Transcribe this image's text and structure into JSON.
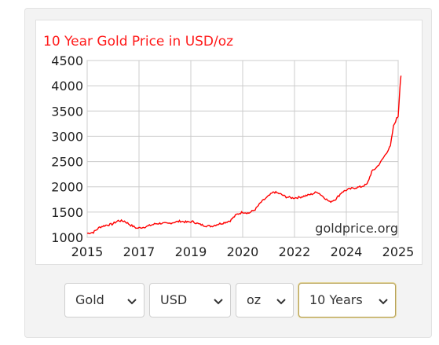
{
  "chart_data": {
    "type": "line",
    "title": "10 Year Gold Price in USD/oz",
    "watermark": "goldprice.org",
    "xlabel": "",
    "ylabel": "",
    "x_ticks": [
      "2015",
      "2017",
      "2019",
      "2020",
      "2022",
      "2024",
      "2025"
    ],
    "y_ticks": [
      "4500",
      "4000",
      "3500",
      "3000",
      "2500",
      "2000",
      "1500",
      "1000"
    ],
    "ylim": [
      1000,
      4500
    ],
    "grid": true,
    "series": [
      {
        "color": "#ff0000",
        "points": [
          [
            0.0,
            1080
          ],
          [
            0.02,
            1100
          ],
          [
            0.04,
            1200
          ],
          [
            0.06,
            1240
          ],
          [
            0.08,
            1260
          ],
          [
            0.1,
            1330
          ],
          [
            0.12,
            1320
          ],
          [
            0.14,
            1240
          ],
          [
            0.16,
            1180
          ],
          [
            0.18,
            1200
          ],
          [
            0.2,
            1230
          ],
          [
            0.22,
            1270
          ],
          [
            0.24,
            1280
          ],
          [
            0.26,
            1270
          ],
          [
            0.28,
            1300
          ],
          [
            0.3,
            1320
          ],
          [
            0.32,
            1300
          ],
          [
            0.34,
            1310
          ],
          [
            0.36,
            1260
          ],
          [
            0.38,
            1230
          ],
          [
            0.4,
            1220
          ],
          [
            0.42,
            1260
          ],
          [
            0.44,
            1290
          ],
          [
            0.46,
            1330
          ],
          [
            0.48,
            1450
          ],
          [
            0.5,
            1500
          ],
          [
            0.52,
            1480
          ],
          [
            0.54,
            1550
          ],
          [
            0.56,
            1700
          ],
          [
            0.58,
            1800
          ],
          [
            0.6,
            1900
          ],
          [
            0.62,
            1860
          ],
          [
            0.64,
            1800
          ],
          [
            0.66,
            1780
          ],
          [
            0.68,
            1790
          ],
          [
            0.7,
            1820
          ],
          [
            0.72,
            1850
          ],
          [
            0.74,
            1900
          ],
          [
            0.76,
            1800
          ],
          [
            0.78,
            1700
          ],
          [
            0.8,
            1760
          ],
          [
            0.82,
            1900
          ],
          [
            0.84,
            1950
          ],
          [
            0.86,
            1980
          ],
          [
            0.88,
            2000
          ],
          [
            0.9,
            2050
          ],
          [
            0.915,
            2300
          ],
          [
            0.93,
            2380
          ],
          [
            0.945,
            2500
          ],
          [
            0.96,
            2650
          ],
          [
            0.975,
            2800
          ],
          [
            0.985,
            3200
          ],
          [
            0.995,
            3350
          ],
          [
            1.0,
            3400
          ],
          [
            1.003,
            3700
          ],
          [
            1.006,
            4000
          ],
          [
            1.009,
            4200
          ]
        ]
      }
    ]
  },
  "controls": {
    "metal": "Gold",
    "currency": "USD",
    "unit": "oz",
    "range": "10 Years"
  },
  "icons": {
    "chevron": "chevron-down-icon"
  }
}
